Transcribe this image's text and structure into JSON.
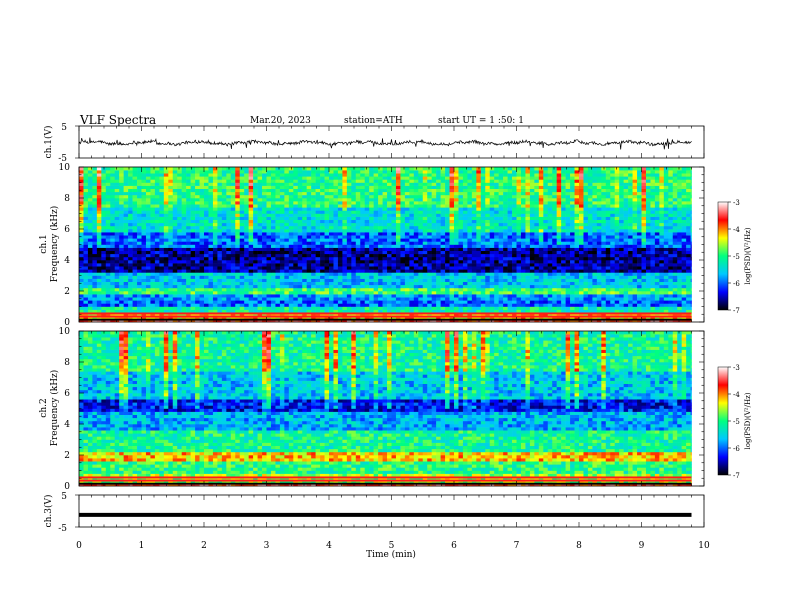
{
  "header": {
    "title": "VLF Spectra",
    "date": "Mar.20, 2023",
    "station": "station=ATH",
    "start_ut": "start UT =  1 :50: 1"
  },
  "chart_data": [
    {
      "type": "line",
      "name": "ch1-waveform",
      "ylabel": "ch.1(V)",
      "ylim": [
        -5,
        5
      ],
      "yticks": [
        "5",
        "-5"
      ],
      "baseline": -0.3,
      "xlim": [
        0,
        9.8
      ]
    },
    {
      "type": "heatmap",
      "name": "ch1-spectrogram",
      "ylabel": "ch.1\nFrequency (kHz)",
      "ylim": [
        0,
        10
      ],
      "yticks": [
        "0",
        "2",
        "4",
        "6",
        "8",
        "10"
      ],
      "xlim": [
        0,
        9.8
      ],
      "colorbar": {
        "label": "log(PSD)(V²/Hz)",
        "range": [
          -7,
          -3
        ],
        "ticks": [
          "-3",
          "-4",
          "-5",
          "-6",
          "-7"
        ]
      },
      "band_profile": [
        {
          "f0": 0.0,
          "f1": 0.3,
          "v": -3.6
        },
        {
          "f0": 0.3,
          "f1": 0.6,
          "v": -4.2
        },
        {
          "f0": 0.6,
          "f1": 0.9,
          "v": -5.2
        },
        {
          "f0": 0.9,
          "f1": 1.4,
          "v": -6.0
        },
        {
          "f0": 1.4,
          "f1": 1.8,
          "v": -5.8
        },
        {
          "f0": 1.8,
          "f1": 2.2,
          "v": -4.9
        },
        {
          "f0": 2.2,
          "f1": 3.2,
          "v": -5.6
        },
        {
          "f0": 3.2,
          "f1": 4.8,
          "v": -6.6
        },
        {
          "f0": 4.8,
          "f1": 5.8,
          "v": -6.0
        },
        {
          "f0": 5.8,
          "f1": 7.5,
          "v": -5.4
        },
        {
          "f0": 7.5,
          "f1": 10.0,
          "v": -5.0
        }
      ]
    },
    {
      "type": "heatmap",
      "name": "ch2-spectrogram",
      "ylabel": "ch.2\nFrequency (kHz)",
      "ylim": [
        0,
        10
      ],
      "yticks": [
        "0",
        "2",
        "4",
        "6",
        "8",
        "10"
      ],
      "xlim": [
        0,
        9.8
      ],
      "colorbar": {
        "label": "log(PSD)(V²/Hz)",
        "range": [
          -7,
          -3
        ],
        "ticks": [
          "-3",
          "-4",
          "-5",
          "-6",
          "-7"
        ]
      },
      "band_profile": [
        {
          "f0": 0.0,
          "f1": 0.3,
          "v": -3.6
        },
        {
          "f0": 0.3,
          "f1": 0.8,
          "v": -4.6
        },
        {
          "f0": 0.8,
          "f1": 1.6,
          "v": -5.0
        },
        {
          "f0": 1.6,
          "f1": 2.2,
          "v": -4.2
        },
        {
          "f0": 2.2,
          "f1": 3.6,
          "v": -5.1
        },
        {
          "f0": 3.6,
          "f1": 4.8,
          "v": -5.7
        },
        {
          "f0": 4.8,
          "f1": 5.6,
          "v": -6.3
        },
        {
          "f0": 5.6,
          "f1": 7.5,
          "v": -5.6
        },
        {
          "f0": 7.5,
          "f1": 10.0,
          "v": -5.1
        }
      ]
    },
    {
      "type": "line",
      "name": "ch3-waveform",
      "ylabel": "ch.3(V)",
      "ylim": [
        -5,
        5
      ],
      "yticks": [
        "5",
        "-5"
      ],
      "baseline": -1.2,
      "xlim": [
        0,
        9.8
      ]
    }
  ],
  "xaxis": {
    "xlabel": "Time (min)",
    "xlim": [
      0,
      10
    ],
    "ticks": [
      "0",
      "1",
      "2",
      "3",
      "4",
      "5",
      "6",
      "7",
      "8",
      "9",
      "10"
    ]
  },
  "colors": {
    "colormap": [
      "#000000",
      "#0000ff",
      "#00c8ff",
      "#00ff80",
      "#ffff00",
      "#ff0000",
      "#ffffff"
    ]
  }
}
